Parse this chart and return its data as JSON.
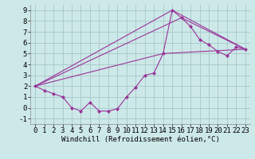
{
  "background_color": "#cde8e8",
  "grid_color": "#aacccc",
  "line_color": "#993399",
  "marker_color": "#993399",
  "xlabel": "Windchill (Refroidissement éolien,°C)",
  "xlim": [
    -0.5,
    23.5
  ],
  "ylim": [
    -1.5,
    9.5
  ],
  "xticks": [
    0,
    1,
    2,
    3,
    4,
    5,
    6,
    7,
    8,
    9,
    10,
    11,
    12,
    13,
    14,
    15,
    16,
    17,
    18,
    19,
    20,
    21,
    22,
    23
  ],
  "yticks": [
    -1,
    0,
    1,
    2,
    3,
    4,
    5,
    6,
    7,
    8,
    9
  ],
  "series1_x": [
    0,
    1,
    2,
    3,
    4,
    5,
    6,
    7,
    8,
    9,
    10,
    11,
    12,
    13,
    14,
    15,
    16,
    17,
    18,
    19,
    20,
    21,
    22,
    23
  ],
  "series1_y": [
    2.0,
    1.6,
    1.3,
    1.0,
    0.0,
    -0.3,
    0.5,
    -0.3,
    -0.3,
    -0.1,
    1.0,
    1.9,
    3.0,
    3.2,
    5.0,
    9.0,
    8.3,
    7.5,
    6.3,
    5.8,
    5.2,
    4.8,
    5.6,
    5.4
  ],
  "series2_x": [
    0,
    14,
    23
  ],
  "series2_y": [
    2.0,
    5.0,
    5.4
  ],
  "series3_x": [
    0,
    15,
    23
  ],
  "series3_y": [
    2.0,
    9.0,
    5.4
  ],
  "series4_x": [
    0,
    16,
    23
  ],
  "series4_y": [
    2.0,
    8.3,
    5.4
  ],
  "font_size_xlabel": 6.5,
  "font_size_ticks": 6.5
}
